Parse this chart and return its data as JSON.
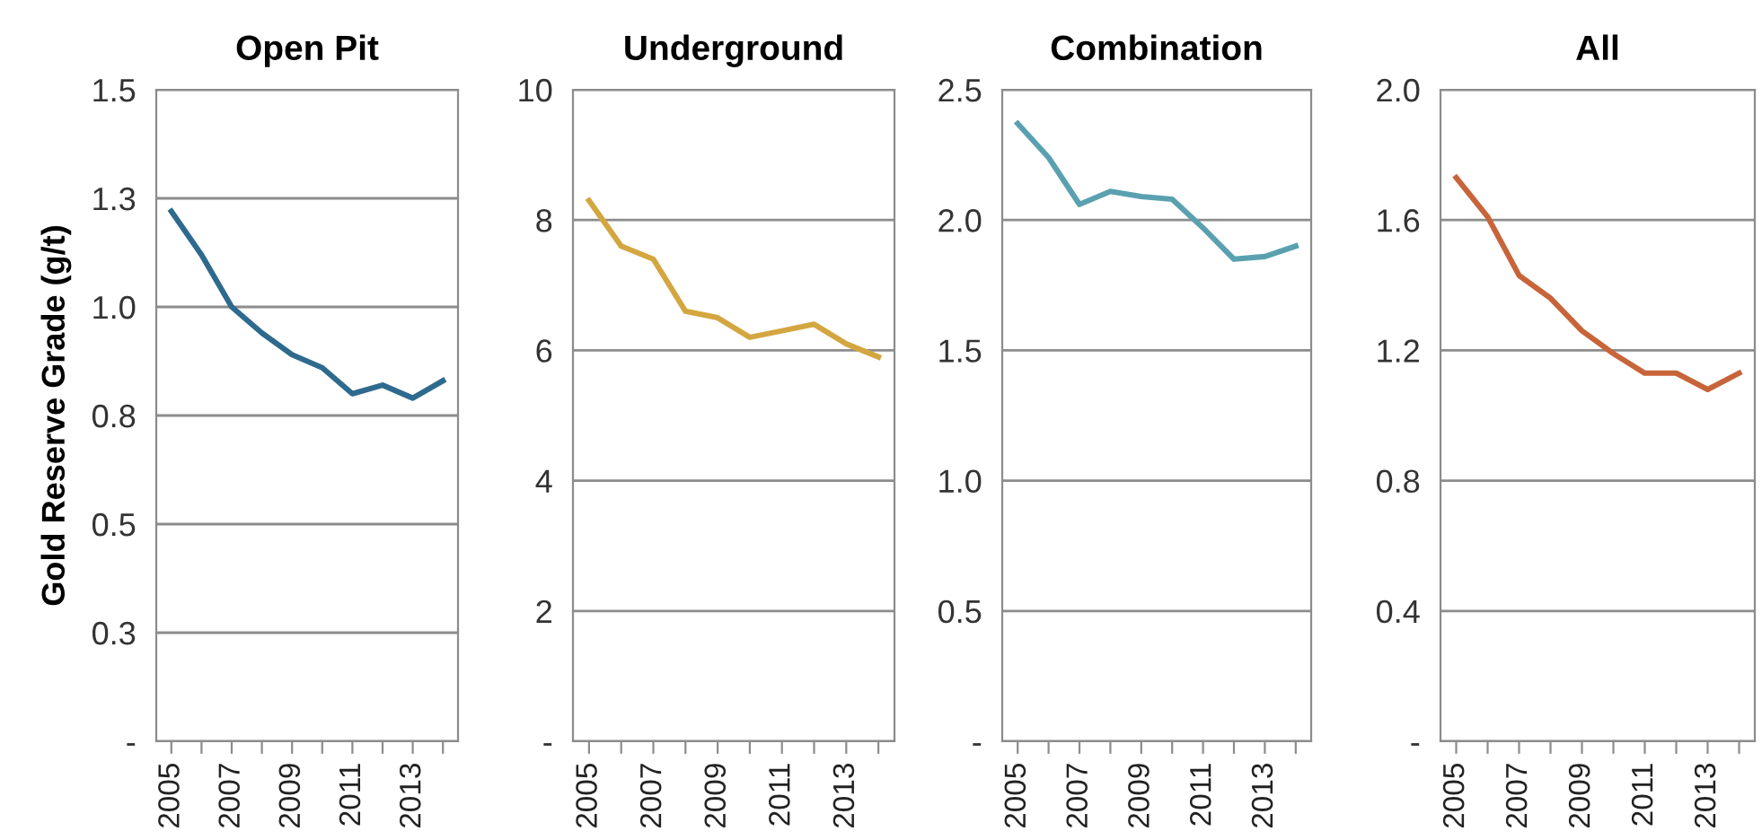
{
  "chart_data": [
    {
      "type": "line",
      "title": "Open Pit",
      "ylabel": "Gold Reserve Grade (g/t)",
      "categories": [
        "2005",
        null,
        "2007",
        null,
        "2009",
        null,
        "2011",
        null,
        "2013",
        null
      ],
      "series": [
        {
          "color": "#2e6a8e",
          "values": [
            1.22,
            1.12,
            1.0,
            0.94,
            0.89,
            0.86,
            0.8,
            0.82,
            0.79,
            0.83
          ]
        }
      ],
      "ylim": [
        0,
        1.5
      ],
      "yticks": [
        {
          "value": 0,
          "label": "-"
        },
        {
          "value": 0.25,
          "label": "0.3"
        },
        {
          "value": 0.5,
          "label": "0.5"
        },
        {
          "value": 0.75,
          "label": "0.8"
        },
        {
          "value": 1.0,
          "label": "1.0"
        },
        {
          "value": 1.25,
          "label": "1.3"
        },
        {
          "value": 1.5,
          "label": "1.5"
        }
      ],
      "grid": "y",
      "marker": "none",
      "line_style": "solid"
    },
    {
      "type": "line",
      "title": "Underground",
      "categories": [
        "2005",
        null,
        "2007",
        null,
        "2009",
        null,
        "2011",
        null,
        "2013",
        null
      ],
      "series": [
        {
          "color": "#d4a640",
          "values": [
            8.3,
            7.6,
            7.4,
            6.6,
            6.5,
            6.2,
            6.3,
            6.4,
            6.1,
            5.9
          ]
        }
      ],
      "ylim": [
        0,
        10
      ],
      "yticks": [
        {
          "value": 0,
          "label": "-"
        },
        2,
        4,
        6,
        8,
        10
      ],
      "grid": "y",
      "marker": "none",
      "line_style": "solid"
    },
    {
      "type": "line",
      "title": "Combination",
      "categories": [
        "2005",
        null,
        "2007",
        null,
        "2009",
        null,
        "2011",
        null,
        "2013",
        null
      ],
      "series": [
        {
          "color": "#5aa1b0",
          "values": [
            2.37,
            2.24,
            2.06,
            2.11,
            2.09,
            2.08,
            1.97,
            1.85,
            1.86,
            1.9
          ]
        }
      ],
      "ylim": [
        0,
        2.5
      ],
      "yticks": [
        {
          "value": 0,
          "label": "-"
        },
        {
          "value": 0.5,
          "label": "0.5"
        },
        {
          "value": 1.0,
          "label": "1.0"
        },
        {
          "value": 1.5,
          "label": "1.5"
        },
        {
          "value": 2.0,
          "label": "2.0"
        },
        {
          "value": 2.5,
          "label": "2.5"
        }
      ],
      "grid": "y",
      "marker": "none",
      "line_style": "solid"
    },
    {
      "type": "line",
      "title": "All",
      "categories": [
        "2005",
        null,
        "2007",
        null,
        "2009",
        null,
        "2011",
        null,
        "2013",
        null
      ],
      "series": [
        {
          "color": "#c8643a",
          "values": [
            1.73,
            1.61,
            1.43,
            1.36,
            1.26,
            1.19,
            1.13,
            1.13,
            1.08,
            1.13
          ]
        }
      ],
      "ylim": [
        0,
        2.0
      ],
      "yticks": [
        {
          "value": 0,
          "label": "-"
        },
        {
          "value": 0.4,
          "label": "0.4"
        },
        {
          "value": 0.8,
          "label": "0.8"
        },
        {
          "value": 1.2,
          "label": "1.2"
        },
        {
          "value": 1.6,
          "label": "1.6"
        },
        {
          "value": 2.0,
          "label": "2.0"
        }
      ],
      "grid": "y",
      "marker": "none",
      "line_style": "solid"
    }
  ]
}
